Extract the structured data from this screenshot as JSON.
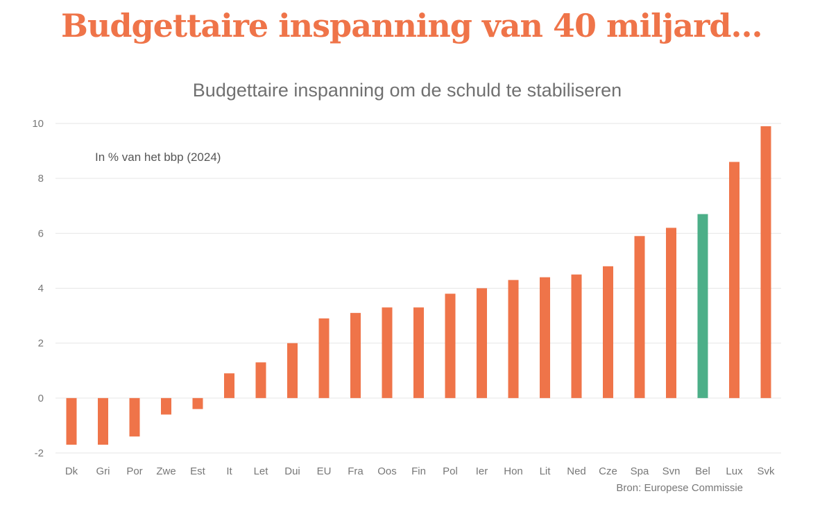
{
  "headline": "Budgettaire inspanning van 40 miljard...",
  "chart_data": {
    "type": "bar",
    "title": "Budgettaire inspanning om de schuld te stabiliseren",
    "annotation": "In % van het bbp (2024)",
    "source": "Bron: Europese Commissie",
    "categories": [
      "Dk",
      "Gri",
      "Por",
      "Zwe",
      "Est",
      "It",
      "Let",
      "Dui",
      "EU",
      "Fra",
      "Oos",
      "Fin",
      "Pol",
      "Ier",
      "Hon",
      "Lit",
      "Ned",
      "Cze",
      "Spa",
      "Svn",
      "Bel",
      "Lux",
      "Svk"
    ],
    "values": [
      -1.7,
      -1.7,
      -1.4,
      -0.6,
      -0.4,
      0.9,
      1.3,
      2.0,
      2.9,
      3.1,
      3.3,
      3.3,
      3.8,
      4.0,
      4.3,
      4.4,
      4.5,
      4.8,
      5.9,
      6.2,
      6.7,
      8.6,
      9.9
    ],
    "highlight": "Bel",
    "ylim": [
      -2,
      10
    ],
    "yticks": [
      -2,
      0,
      2,
      4,
      6,
      8,
      10
    ],
    "grid": true,
    "colors": {
      "bar": "#ef7449",
      "highlight": "#4caf88"
    }
  }
}
